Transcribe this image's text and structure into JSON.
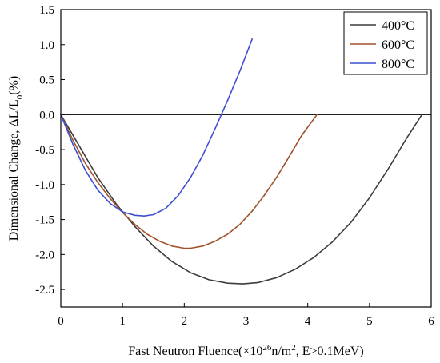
{
  "chart_data": {
    "type": "line",
    "xlabel_main": "Fast Neutron Fluence(×10",
    "xlabel_exp": "26",
    "xlabel_mid": "n/m",
    "xlabel_exp2": "2",
    "xlabel_end": ", E>0.1MeV)",
    "ylabel_main": "Dimensional Change, ΔL/L",
    "ylabel_sub": "0",
    "ylabel_end": "(%)",
    "xlim": [
      0,
      6
    ],
    "ylim": [
      -2.75,
      1.5
    ],
    "xticks": [
      0,
      1,
      2,
      3,
      4,
      5,
      6
    ],
    "yticks": [
      -2.5,
      -2.0,
      -1.5,
      -1.0,
      -0.5,
      0.0,
      0.5,
      1.0,
      1.5
    ],
    "xtick_labels": [
      "0",
      "1",
      "2",
      "3",
      "4",
      "5",
      "6"
    ],
    "ytick_labels": [
      "-2.5",
      "-2.0",
      "-1.5",
      "-1.0",
      "-0.5",
      "0.0",
      "0.5",
      "1.0",
      "1.5"
    ],
    "zero_line": true,
    "grid": false,
    "legend_position": "top-right",
    "series": [
      {
        "name": "400°C",
        "color": "#3c3c3c",
        "x": [
          0,
          0.3,
          0.6,
          0.9,
          1.2,
          1.5,
          1.8,
          2.1,
          2.4,
          2.7,
          2.95,
          3.2,
          3.5,
          3.8,
          4.1,
          4.4,
          4.7,
          5.0,
          5.3,
          5.6,
          5.85
        ],
        "y": [
          0,
          -0.45,
          -0.9,
          -1.28,
          -1.6,
          -1.88,
          -2.1,
          -2.26,
          -2.36,
          -2.41,
          -2.42,
          -2.4,
          -2.33,
          -2.21,
          -2.04,
          -1.82,
          -1.54,
          -1.19,
          -0.78,
          -0.34,
          0
        ]
      },
      {
        "name": "600°C",
        "color": "#a0522d",
        "x": [
          0,
          0.2,
          0.4,
          0.6,
          0.8,
          1.0,
          1.2,
          1.4,
          1.6,
          1.8,
          2.0,
          2.1,
          2.3,
          2.5,
          2.7,
          2.9,
          3.1,
          3.3,
          3.5,
          3.7,
          3.9,
          4.15
        ],
        "y": [
          0,
          -0.37,
          -0.7,
          -0.97,
          -1.2,
          -1.4,
          -1.57,
          -1.71,
          -1.81,
          -1.88,
          -1.91,
          -1.91,
          -1.88,
          -1.81,
          -1.71,
          -1.57,
          -1.38,
          -1.15,
          -0.89,
          -0.6,
          -0.3,
          0
        ]
      },
      {
        "name": "800°C",
        "color": "#3a4ed0",
        "x": [
          0,
          0.2,
          0.4,
          0.6,
          0.8,
          1.0,
          1.2,
          1.35,
          1.5,
          1.7,
          1.9,
          2.1,
          2.3,
          2.5,
          2.7,
          2.9,
          3.1
        ],
        "y": [
          0,
          -0.43,
          -0.8,
          -1.08,
          -1.27,
          -1.39,
          -1.44,
          -1.45,
          -1.43,
          -1.34,
          -1.16,
          -0.9,
          -0.58,
          -0.2,
          0.2,
          0.62,
          1.08
        ]
      }
    ]
  }
}
